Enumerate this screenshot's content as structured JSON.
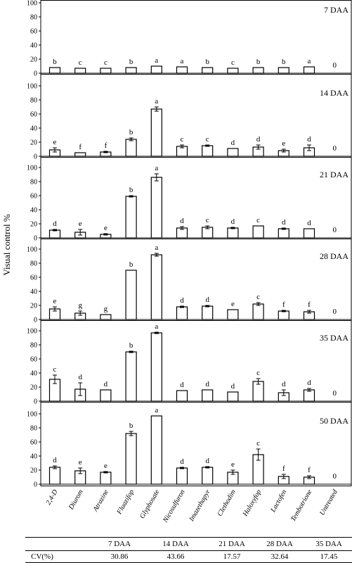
{
  "y_axis_label": "Visual control %",
  "chart_data": {
    "type": "bar",
    "categories": [
      "2,4-D",
      "Diurom",
      "Atrazine",
      "Fluazifop",
      "Glyphosate",
      "Nicosulfuron",
      "Imazethapyr",
      "Clethodim",
      "Haloxyfop",
      "Lactofen",
      "Tembotrione",
      "Untreated"
    ],
    "ylim": [
      0,
      100
    ],
    "yticks": [
      0,
      20,
      40,
      60,
      80,
      100
    ],
    "bar_fill": "#ffffff",
    "bar_stroke": "#000000",
    "panels": [
      {
        "title": "7 DAA",
        "values": [
          8,
          7,
          7,
          8,
          10,
          9,
          8,
          7,
          8,
          8,
          9,
          0
        ],
        "errors": [
          0,
          0,
          0,
          0,
          0,
          0,
          0,
          0,
          0,
          0,
          0,
          0
        ],
        "letters": [
          "b",
          "c",
          "c",
          "b",
          "a",
          "a",
          "b",
          "c",
          "b",
          "b",
          "a",
          "0"
        ]
      },
      {
        "title": "14 DAA",
        "values": [
          9,
          5,
          6,
          24,
          67,
          14,
          15,
          11,
          13,
          8,
          12,
          0
        ],
        "errors": [
          3,
          0,
          1,
          2,
          3,
          2,
          1,
          0,
          3,
          2,
          4,
          0
        ],
        "letters": [
          "e",
          "f",
          "f",
          "b",
          "a",
          "c",
          "c",
          "d",
          "d",
          "e",
          "d",
          "0"
        ]
      },
      {
        "title": "21 DAA",
        "values": [
          11,
          8,
          5,
          59,
          86,
          14,
          15,
          14,
          17,
          13,
          13,
          0
        ],
        "errors": [
          1,
          4,
          1,
          1,
          5,
          2,
          2,
          1,
          0,
          1,
          0,
          0
        ],
        "letters": [
          "d",
          "e",
          "e",
          "b",
          "a",
          "d",
          "c",
          "d",
          "c",
          "d",
          "d",
          "0"
        ]
      },
      {
        "title": "28 DAA",
        "values": [
          15,
          9,
          7,
          70,
          92,
          18,
          19,
          14,
          22,
          12,
          11,
          0
        ],
        "errors": [
          3,
          3,
          0,
          0,
          2,
          1,
          1,
          0,
          2,
          1,
          2,
          0
        ],
        "letters": [
          "e",
          "g",
          "g",
          "b",
          "a",
          "d",
          "d",
          "e",
          "c",
          "f",
          "f",
          "0"
        ]
      },
      {
        "title": "35 DAA",
        "values": [
          31,
          17,
          16,
          70,
          97,
          15,
          16,
          13,
          28,
          12,
          16,
          0
        ],
        "errors": [
          6,
          9,
          0,
          1,
          1,
          0,
          0,
          0,
          4,
          4,
          2,
          0
        ],
        "letters": [
          "c",
          "d",
          "d",
          "b",
          "a",
          "d",
          "d",
          "d",
          "c",
          "d",
          "d",
          "0"
        ]
      },
      {
        "title": "50 DAA",
        "values": [
          24,
          19,
          17,
          72,
          97,
          23,
          24,
          17,
          42,
          11,
          10,
          0
        ],
        "errors": [
          2,
          4,
          1,
          3,
          0,
          1,
          1,
          3,
          8,
          3,
          2,
          0
        ],
        "letters": [
          "d",
          "e",
          "e",
          "b",
          "a",
          "d",
          "d",
          "e",
          "c",
          "f",
          "f",
          "0"
        ]
      }
    ]
  },
  "cv_table": {
    "row_label": "CV(%)",
    "headers": [
      "7 DAA",
      "14 DAA",
      "21 DAA",
      "28 DAA",
      "35 DAA"
    ],
    "values": [
      "30.86",
      "43.66",
      "17.57",
      "32.64",
      "17.45"
    ]
  }
}
